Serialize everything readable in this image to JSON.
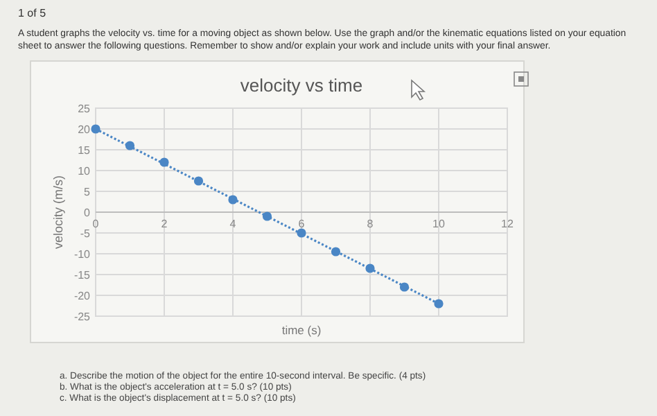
{
  "chart_data": {
    "type": "scatter",
    "title": "velocity vs time",
    "xlabel": "time (s)",
    "ylabel": "velocity (m/s)",
    "annotations": [
      "1 of 5",
      "A student graphs the velocity vs. time for a moving object as shown below. Use the graph and/or the kinematic equations listed on your equation",
      "sheet to answer the following questions. Remember to show and/or explain your work and include units with your final answer.",
      "a. Describe the motion of the object for the entire 10-second interval. Be specific. (4 pts)",
      "b. What is the object's acceleration at t = 5.0 s? (10 pts)",
      "c. What is the object's displacement at t = 5.0 s? (10 pts)"
    ],
    "series": [
      {
        "type": "line",
        "color": "#4a86c5",
        "x": [
          0,
          10
        ],
        "values": [
          20,
          -22
        ],
        "marker": "none",
        "line_style": "dotted"
      },
      {
        "color": "#4a86c5",
        "marker": "circle",
        "x": [
          0,
          1,
          2,
          3,
          4,
          5,
          6,
          7,
          8,
          9,
          10
        ],
        "values": [
          20,
          16,
          12,
          7.5,
          3,
          -1,
          -5,
          -9.5,
          -13.5,
          -18,
          -22
        ]
      }
    ],
    "xlim": [
      0,
      12
    ],
    "xticks": [
      0,
      2,
      4,
      6,
      8,
      10,
      12
    ],
    "ylim": [
      -25,
      25
    ],
    "yticks": [
      -25,
      -20,
      -15,
      -10,
      -5,
      0,
      5,
      10,
      15,
      20,
      25
    ],
    "grid": true
  }
}
